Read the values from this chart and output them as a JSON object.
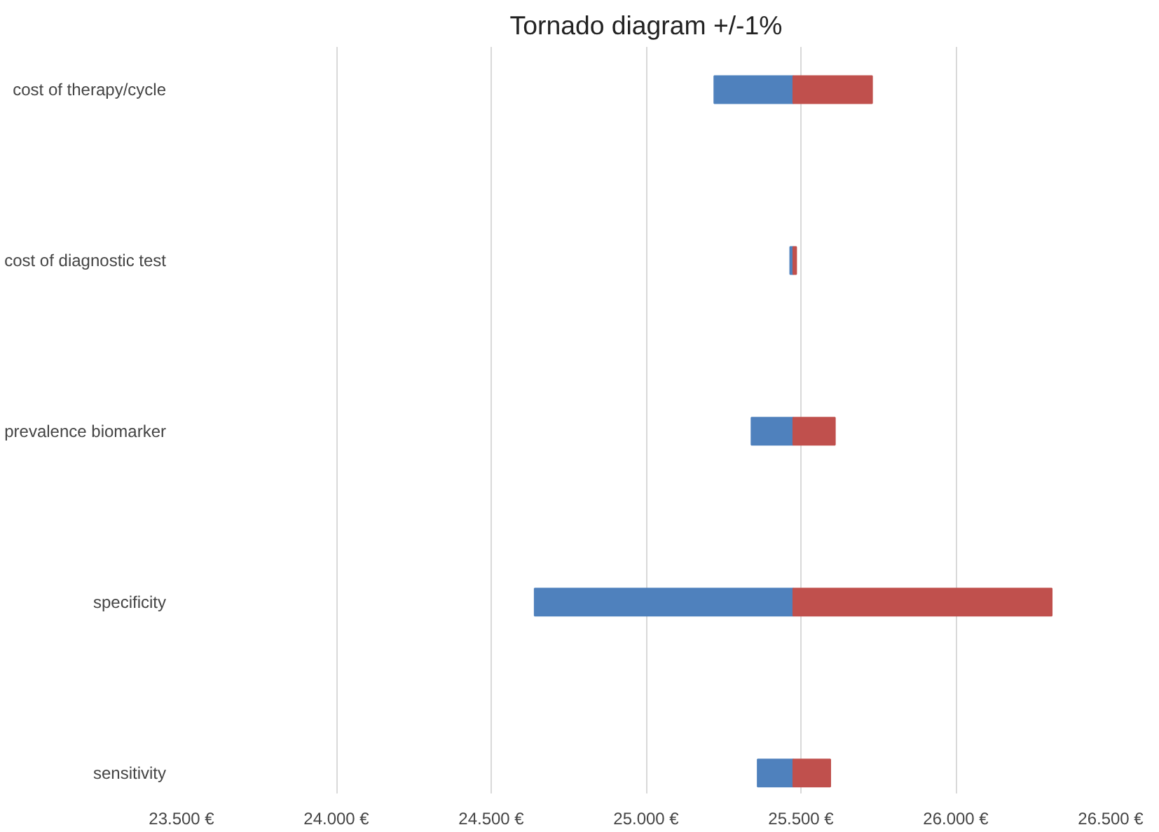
{
  "chart_data": {
    "type": "bar",
    "orientation": "horizontal",
    "title": "Tornado diagram +/-1%",
    "categories": [
      "cost of therapy/cycle",
      "cost of diagnostic test",
      "prevalence biomarker",
      "specificity",
      "sensitivity"
    ],
    "series": [
      {
        "color": "#4f81bd",
        "base": [
          25220,
          25465,
          25340,
          24640,
          25360
        ],
        "values": [
          255,
          10,
          135,
          835,
          115
        ]
      },
      {
        "color": "#c0504d",
        "base": [
          25475,
          25475,
          25475,
          25475,
          25475
        ],
        "values": [
          255,
          10,
          135,
          835,
          120
        ]
      }
    ],
    "xlim": [
      23500,
      26500
    ],
    "xticks": [
      {
        "value": 23500,
        "label": "23.500 €"
      },
      {
        "value": 24000,
        "label": "24.000 €"
      },
      {
        "value": 24500,
        "label": "24.500 €"
      },
      {
        "value": 25000,
        "label": "25.000 €"
      },
      {
        "value": 25500,
        "label": "25.500 €"
      },
      {
        "value": 26000,
        "label": "26.000 €"
      },
      {
        "value": 26500,
        "label": "26.500 €"
      }
    ],
    "grid": "x"
  }
}
